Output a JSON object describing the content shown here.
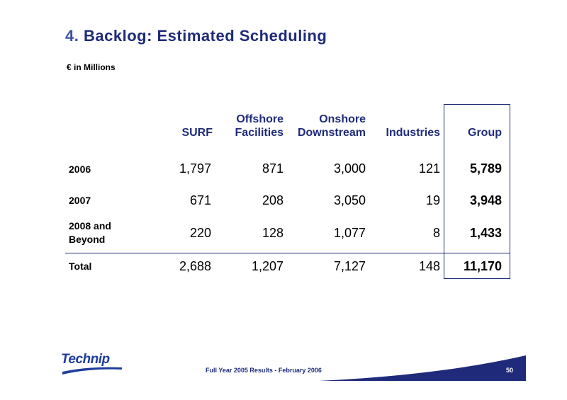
{
  "title": {
    "number": "4.",
    "text": "Backlog: Estimated Scheduling"
  },
  "unit": "€ in Millions",
  "columns": [
    {
      "line1": "",
      "line2": "SURF"
    },
    {
      "line1": "Offshore",
      "line2": "Facilities"
    },
    {
      "line1": "Onshore",
      "line2": "Downstream"
    },
    {
      "line1": "",
      "line2": "Industries"
    },
    {
      "line1": "",
      "line2": "Group"
    }
  ],
  "rows": [
    {
      "label1": "2006",
      "label2": "",
      "values": [
        "1,797",
        "871",
        "3,000",
        "121",
        "5,789"
      ]
    },
    {
      "label1": "2007",
      "label2": "",
      "values": [
        "671",
        "208",
        "3,050",
        "19",
        "3,948"
      ]
    },
    {
      "label1": "2008 and",
      "label2": "Beyond",
      "values": [
        "220",
        "128",
        "1,077",
        "8",
        "1,433"
      ]
    },
    {
      "label1": "Total",
      "label2": "",
      "values": [
        "2,688",
        "1,207",
        "7,127",
        "148",
        "11,170"
      ]
    }
  ],
  "logo": {
    "text": "Technip"
  },
  "footer": {
    "text": "Full Year 2005 Results  -  February 2006",
    "page": "50"
  },
  "colors": {
    "accent": "#1f2b7a",
    "logo": "#1f3d9c"
  }
}
